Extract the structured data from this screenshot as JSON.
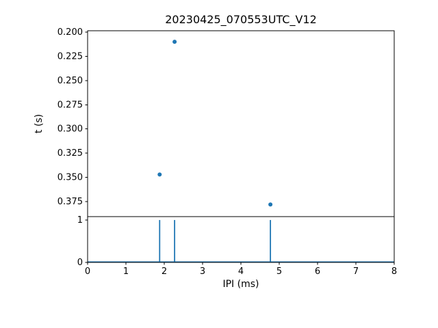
{
  "figure": {
    "background": "#ffffff",
    "frame_color": "#000000",
    "accent_color": "#1f77b4"
  },
  "chart_data": [
    {
      "type": "scatter",
      "title": "20230425_070553UTC_V12",
      "ylabel": "t (s)",
      "x": [
        1.88,
        2.27,
        4.77
      ],
      "y": [
        0.347,
        0.21,
        0.378
      ],
      "xlim": [
        0,
        8
      ],
      "ylim": [
        0.1986,
        0.3905
      ],
      "y_inverted": true,
      "yticks": [
        0.2,
        0.225,
        0.25,
        0.275,
        0.3,
        0.325,
        0.35,
        0.375
      ],
      "ytick_labels": [
        "0.200",
        "0.225",
        "0.250",
        "0.275",
        "0.300",
        "0.325",
        "0.350",
        "0.375"
      ],
      "marker_color": "#1f77b4",
      "grid": false,
      "legend": "none"
    },
    {
      "type": "stem",
      "xlabel": "IPI (ms)",
      "x": [
        1.88,
        2.27,
        4.77
      ],
      "heights": [
        1,
        1,
        1
      ],
      "baseline": 0,
      "xlim": [
        0,
        8
      ],
      "ylim": [
        0,
        1.08
      ],
      "xticks": [
        0,
        1,
        2,
        3,
        4,
        5,
        6,
        7,
        8
      ],
      "xtick_labels": [
        "0",
        "1",
        "2",
        "3",
        "4",
        "5",
        "6",
        "7",
        "8"
      ],
      "yticks": [
        0,
        1
      ],
      "ytick_labels": [
        "0",
        "1"
      ],
      "line_color": "#1f77b4",
      "grid": false,
      "legend": "none"
    }
  ]
}
